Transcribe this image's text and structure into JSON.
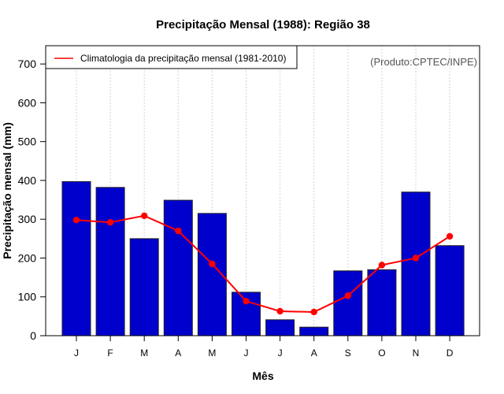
{
  "chart_data": {
    "type": "bar",
    "title": "Precipitação Mensal (1988): Região 38",
    "xlabel": "Mês",
    "ylabel": "Precipitação mensal (mm)",
    "ylim": [
      0,
      750
    ],
    "yticks": [
      0,
      100,
      200,
      300,
      400,
      500,
      600,
      700
    ],
    "categories": [
      "J",
      "F",
      "M",
      "A",
      "M",
      "J",
      "J",
      "A",
      "S",
      "O",
      "N",
      "D"
    ],
    "grid": "vertical dotted",
    "series": [
      {
        "name": "Precipitação mensal (1988)",
        "type": "bar",
        "color": "#0000CD",
        "values": [
          397,
          382,
          250,
          349,
          315,
          112,
          41,
          22,
          167,
          170,
          370,
          232
        ]
      },
      {
        "name": "Climatologia da precipitação mensal (1981-2010)",
        "type": "line",
        "color": "#FF0000",
        "values": [
          298,
          292,
          309,
          270,
          185,
          89,
          63,
          61,
          103,
          182,
          200,
          256
        ]
      }
    ],
    "legend": {
      "position": "top-left",
      "entries": [
        "Climatologia da precipitação mensal (1981-2010)"
      ]
    },
    "annotation": "(Produto:CPTEC/INPE)"
  }
}
